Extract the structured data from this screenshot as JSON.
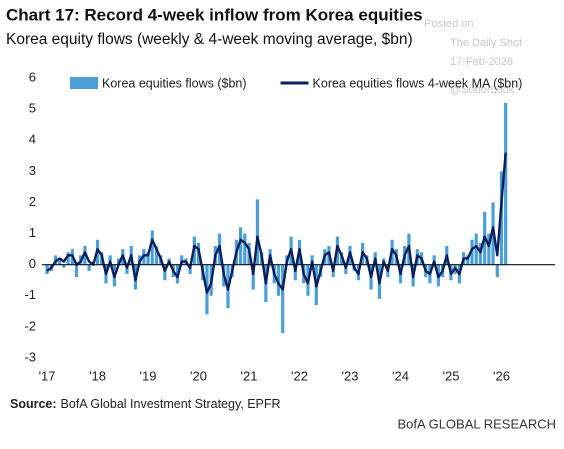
{
  "chart_data": {
    "type": "combo",
    "title": "Chart 17: Record 4-week inflow from Korea equities",
    "subtitle": "Korea equity flows (weekly & 4-week moving average, $bn)",
    "x": [
      2017.0,
      2017.083,
      2017.167,
      2017.25,
      2017.333,
      2017.417,
      2017.5,
      2017.583,
      2017.667,
      2017.75,
      2017.833,
      2017.917,
      2018.0,
      2018.083,
      2018.167,
      2018.25,
      2018.333,
      2018.417,
      2018.5,
      2018.583,
      2018.667,
      2018.75,
      2018.833,
      2018.917,
      2019.0,
      2019.083,
      2019.167,
      2019.25,
      2019.333,
      2019.417,
      2019.5,
      2019.583,
      2019.667,
      2019.75,
      2019.833,
      2019.917,
      2020.0,
      2020.083,
      2020.167,
      2020.25,
      2020.333,
      2020.417,
      2020.5,
      2020.583,
      2020.667,
      2020.75,
      2020.833,
      2020.917,
      2021.0,
      2021.083,
      2021.167,
      2021.25,
      2021.333,
      2021.417,
      2021.5,
      2021.583,
      2021.667,
      2021.75,
      2021.833,
      2021.917,
      2022.0,
      2022.083,
      2022.167,
      2022.25,
      2022.333,
      2022.417,
      2022.5,
      2022.583,
      2022.667,
      2022.75,
      2022.833,
      2022.917,
      2023.0,
      2023.083,
      2023.167,
      2023.25,
      2023.333,
      2023.417,
      2023.5,
      2023.583,
      2023.667,
      2023.75,
      2023.833,
      2023.917,
      2024.0,
      2024.083,
      2024.167,
      2024.25,
      2024.333,
      2024.417,
      2024.5,
      2024.583,
      2024.667,
      2024.75,
      2024.833,
      2024.917,
      2025.0,
      2025.083,
      2025.167,
      2025.25,
      2025.333,
      2025.417,
      2025.5,
      2025.583,
      2025.667,
      2025.75,
      2025.833,
      2025.917,
      2026.0,
      2026.083
    ],
    "series": [
      {
        "name": "Korea equities flows ($bn)",
        "type": "bar",
        "color": "#4a9fd8",
        "values": [
          -0.3,
          -0.2,
          0.3,
          0.2,
          -0.1,
          0.4,
          0.5,
          -0.4,
          0.3,
          0.6,
          -0.2,
          0.1,
          0.8,
          0.4,
          -0.6,
          0.3,
          -0.7,
          0.2,
          0.5,
          -0.3,
          0.6,
          -0.8,
          0.3,
          0.5,
          0.4,
          1.1,
          0.6,
          0.3,
          -0.5,
          0.2,
          -0.4,
          -0.6,
          0.3,
          0.2,
          -0.3,
          0.9,
          0.7,
          -0.5,
          -1.6,
          -1.0,
          0.6,
          1.0,
          -0.7,
          -1.4,
          -0.4,
          0.8,
          1.2,
          1.0,
          0.7,
          -0.8,
          2.1,
          0.4,
          -1.2,
          0.5,
          -0.6,
          -1.0,
          -2.2,
          0.3,
          0.9,
          -0.5,
          0.8,
          -0.6,
          -1.0,
          0.3,
          -1.3,
          -0.4,
          0.5,
          0.6,
          -0.4,
          0.9,
          0.4,
          -0.3,
          0.6,
          -0.2,
          -0.5,
          0.7,
          0.3,
          -0.8,
          0.4,
          -1.1,
          0.2,
          -0.4,
          0.8,
          0.5,
          -0.6,
          0.6,
          1.0,
          -0.7,
          0.5,
          0.4,
          -0.4,
          -0.6,
          0.3,
          -0.7,
          -0.4,
          0.6,
          -0.5,
          -0.3,
          -0.6,
          0.4,
          0.3,
          0.8,
          1.0,
          0.7,
          1.7,
          1.0,
          2.0,
          -0.4,
          3.0,
          5.2
        ]
      },
      {
        "name": "Korea equities flows 4-week MA ($bn)",
        "type": "line",
        "color": "#0b1f5c",
        "values": [
          -0.2,
          -0.1,
          0.1,
          0.2,
          0.1,
          0.3,
          0.3,
          0.0,
          0.1,
          0.4,
          0.1,
          0.0,
          0.5,
          0.3,
          -0.3,
          0.1,
          -0.4,
          0.0,
          0.3,
          -0.1,
          0.3,
          -0.5,
          0.1,
          0.3,
          0.3,
          0.8,
          0.5,
          0.2,
          -0.2,
          0.1,
          -0.2,
          -0.4,
          0.1,
          0.1,
          -0.1,
          0.6,
          0.5,
          -0.2,
          -0.9,
          -0.6,
          0.3,
          0.6,
          -0.3,
          -0.8,
          -0.2,
          0.4,
          0.8,
          0.7,
          0.5,
          -0.3,
          0.9,
          0.3,
          -0.6,
          0.3,
          -0.3,
          -0.6,
          -0.8,
          0.1,
          0.5,
          -0.2,
          0.5,
          -0.3,
          -0.6,
          0.1,
          -0.7,
          -0.2,
          0.3,
          0.4,
          -0.2,
          0.6,
          0.3,
          -0.1,
          0.4,
          -0.1,
          -0.3,
          0.4,
          0.2,
          -0.4,
          0.2,
          -0.6,
          0.1,
          -0.2,
          0.5,
          0.3,
          -0.3,
          0.3,
          0.6,
          -0.4,
          0.3,
          0.2,
          -0.2,
          -0.3,
          0.1,
          -0.4,
          -0.2,
          0.3,
          -0.3,
          -0.1,
          -0.3,
          0.2,
          0.2,
          0.5,
          0.6,
          0.4,
          0.9,
          0.6,
          1.2,
          0.3,
          2.0,
          3.6
        ]
      }
    ],
    "xlim": [
      2016.9,
      2027.06
    ],
    "xticks": [
      {
        "value": 2017,
        "label": "'17"
      },
      {
        "value": 2018,
        "label": "'18"
      },
      {
        "value": 2019,
        "label": "'19"
      },
      {
        "value": 2020,
        "label": "'20"
      },
      {
        "value": 2021,
        "label": "'21"
      },
      {
        "value": 2022,
        "label": "'22"
      },
      {
        "value": 2023,
        "label": "'23"
      },
      {
        "value": 2024,
        "label": "'24"
      },
      {
        "value": 2025,
        "label": "'25"
      },
      {
        "value": 2026,
        "label": "'26"
      }
    ],
    "ylim": [
      -3,
      6
    ],
    "yticks": [
      -3,
      -2,
      -1,
      0,
      1,
      2,
      3,
      4,
      5,
      6
    ],
    "grid": false,
    "legend": "top",
    "source_label": "Source:",
    "source": "BofA Global Investment Strategy, EPFR"
  },
  "branding": "BofA GLOBAL RESEARCH",
  "watermark": [
    "Posted on",
    "The Daily Shot",
    "17-Feb-2026",
    "@SoberLook"
  ]
}
